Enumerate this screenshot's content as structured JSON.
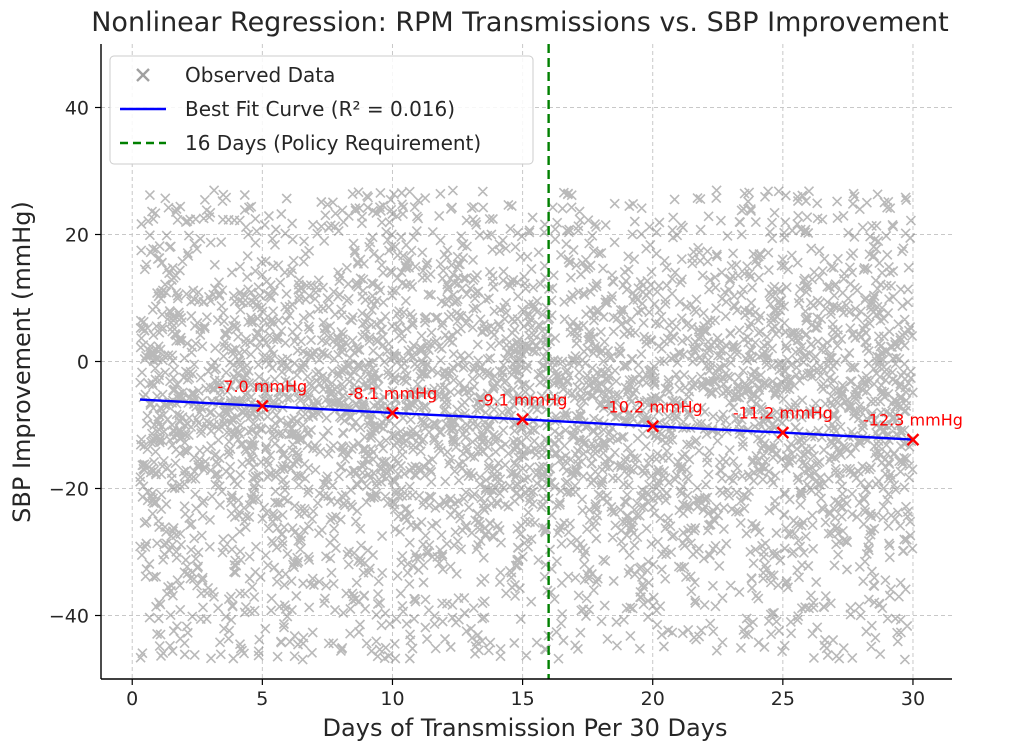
{
  "chart_data": {
    "type": "scatter",
    "title": "Nonlinear Regression: RPM Transmissions vs. SBP Improvement",
    "xlabel": "Days of Transmission Per 30 Days",
    "ylabel": "SBP Improvement (mmHg)",
    "xlim": [
      -1.2,
      31.5
    ],
    "ylim": [
      -50,
      50
    ],
    "xticks": [
      0,
      5,
      10,
      15,
      20,
      25,
      30
    ],
    "yticks": [
      -40,
      -20,
      0,
      20,
      40
    ],
    "ytick_labels": [
      "−40",
      "−20",
      "0",
      "20",
      "40"
    ],
    "grid": true,
    "legend_position": "top-left",
    "observed": {
      "name": "Observed Data",
      "x_range": [
        0.3,
        30
      ],
      "y_range": [
        -47,
        27
      ],
      "y_center": -8
    },
    "fit": {
      "name": "Best Fit Curve (R² = 0.016)",
      "x": [
        0.3,
        5,
        10,
        15,
        20,
        25,
        30
      ],
      "y": [
        -6.0,
        -7.0,
        -8.1,
        -9.1,
        -10.2,
        -11.2,
        -12.3
      ]
    },
    "highlight_points": [
      {
        "x": 5,
        "y": -7.0,
        "label": "-7.0 mmHg"
      },
      {
        "x": 10,
        "y": -8.1,
        "label": "-8.1 mmHg"
      },
      {
        "x": 15,
        "y": -9.1,
        "label": "-9.1 mmHg"
      },
      {
        "x": 20,
        "y": -10.2,
        "label": "-10.2 mmHg"
      },
      {
        "x": 25,
        "y": -11.2,
        "label": "-11.2 mmHg"
      },
      {
        "x": 30,
        "y": -12.3,
        "label": "-12.3 mmHg"
      }
    ],
    "reference_line": {
      "x": 16,
      "name": "16 Days (Policy Requirement)"
    },
    "colors": {
      "observed": "#808080",
      "fit": "#0000ff",
      "reference": "#008000",
      "highlight": "#ff0000",
      "annotation": "#ff0000"
    }
  }
}
